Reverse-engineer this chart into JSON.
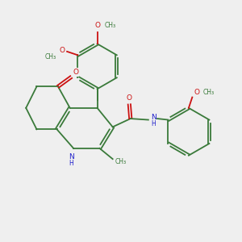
{
  "background_color": "#efefef",
  "bond_color": "#3a7a3a",
  "N_color": "#2020cc",
  "O_color": "#cc1111",
  "text_color": "#3a7a3a",
  "figsize": [
    3.0,
    3.0
  ],
  "dpi": 100,
  "lw": 1.3,
  "fs": 6.5,
  "xlim": [
    0,
    10
  ],
  "ylim": [
    0,
    10
  ]
}
